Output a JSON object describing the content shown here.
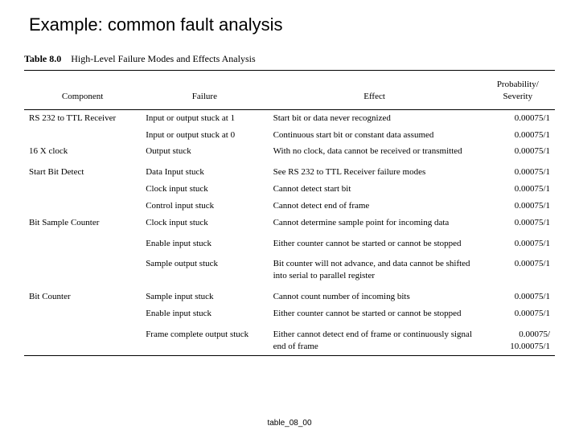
{
  "slide_title": "Example: common fault analysis",
  "caption_label": "Table 8.0",
  "caption_text": "High-Level Failure Modes and Effects Analysis",
  "columns": {
    "component": "Component",
    "failure": "Failure",
    "effect": "Effect",
    "prob_line1": "Probability/",
    "prob_line2": "Severity"
  },
  "rows": [
    {
      "component": "RS 232 to TTL Receiver",
      "failure": "Input or output stuck at 1",
      "effect": "Start bit or data never recognized",
      "prob": "0.00075/1"
    },
    {
      "component": "",
      "failure": "Input or output stuck at 0",
      "effect": "Continuous start bit or constant data assumed",
      "prob": "0.00075/1"
    },
    {
      "component": "16 X clock",
      "failure": "Output stuck",
      "effect": "With no clock, data cannot be received or transmitted",
      "prob": "0.00075/1"
    },
    {
      "component": "Start Bit Detect",
      "failure": "Data Input stuck",
      "effect": "See RS 232 to TTL Receiver failure modes",
      "prob": "0.00075/1",
      "gap": true
    },
    {
      "component": "",
      "failure": "Clock input stuck",
      "effect": "Cannot detect start bit",
      "prob": "0.00075/1"
    },
    {
      "component": "",
      "failure": "Control input stuck",
      "effect": "Cannot detect end of frame",
      "prob": "0.00075/1"
    },
    {
      "component": "Bit Sample Counter",
      "failure": "Clock input stuck",
      "effect": "Cannot determine sample point for incoming data",
      "prob": "0.00075/1"
    },
    {
      "component": "",
      "failure": "Enable input stuck",
      "effect": "Either counter cannot be started or cannot be stopped",
      "prob": "0.00075/1",
      "gap": true
    },
    {
      "component": "",
      "failure": "Sample output stuck",
      "effect": "Bit counter will not advance, and data cannot be shifted into serial to parallel register",
      "prob": "0.00075/1",
      "gap": true
    },
    {
      "component": "Bit Counter",
      "failure": "Sample input stuck",
      "effect": "Cannot count number of incoming bits",
      "prob": "0.00075/1",
      "gap": true
    },
    {
      "component": "",
      "failure": "Enable input stuck",
      "effect": "Either counter cannot be started or cannot be stopped",
      "prob": "0.00075/1"
    },
    {
      "component": "",
      "failure": "Frame complete output stuck",
      "effect": "Either cannot detect end of frame or continuously signal end of frame",
      "prob": "0.00075/\n10.00075/1",
      "gap": true
    }
  ],
  "footer": "table_08_00"
}
